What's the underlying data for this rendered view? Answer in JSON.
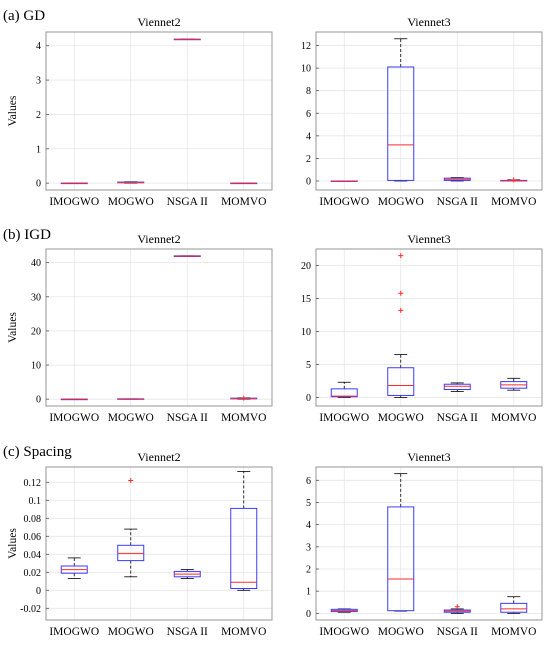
{
  "figure": {
    "section_labels": [
      "(a) GD",
      "(b) IGD",
      "(c) Spacing"
    ]
  },
  "chart_data": [
    {
      "type": "box",
      "section": 0,
      "col": 0,
      "title": "Viennet2",
      "ylabel": "Values",
      "categories": [
        "IMOGWO",
        "MOGWO",
        "NSGA II",
        "MOMVO"
      ],
      "ylim": [
        -0.2,
        4.4
      ],
      "yticks": [
        0,
        1,
        2,
        3,
        4
      ],
      "grid": true,
      "boxes": [
        {
          "q1": 0.0,
          "median": 0.0,
          "q3": 0.0,
          "whisker_low": 0.0,
          "whisker_high": 0.0,
          "outliers": []
        },
        {
          "q1": 0.01,
          "median": 0.02,
          "q3": 0.03,
          "whisker_low": 0.0,
          "whisker_high": 0.04,
          "outliers": []
        },
        {
          "q1": 4.19,
          "median": 4.19,
          "q3": 4.19,
          "whisker_low": 4.19,
          "whisker_high": 4.19,
          "outliers": []
        },
        {
          "q1": 0.0,
          "median": 0.0,
          "q3": 0.0,
          "whisker_low": 0.0,
          "whisker_high": 0.0,
          "outliers": []
        }
      ]
    },
    {
      "type": "box",
      "section": 0,
      "col": 1,
      "title": "Viennet3",
      "ylabel": "",
      "categories": [
        "IMOGWO",
        "MOGWO",
        "NSGA II",
        "MOMVO"
      ],
      "ylim": [
        -0.8,
        13.2
      ],
      "yticks": [
        0,
        2,
        4,
        6,
        8,
        10,
        12
      ],
      "grid": true,
      "boxes": [
        {
          "q1": 0.0,
          "median": 0.0,
          "q3": 0.0,
          "whisker_low": 0.0,
          "whisker_high": 0.0,
          "outliers": []
        },
        {
          "q1": 0.05,
          "median": 3.2,
          "q3": 10.1,
          "whisker_low": 0.0,
          "whisker_high": 12.6,
          "outliers": []
        },
        {
          "q1": 0.05,
          "median": 0.15,
          "q3": 0.25,
          "whisker_low": 0.0,
          "whisker_high": 0.3,
          "outliers": []
        },
        {
          "q1": 0.0,
          "median": 0.02,
          "q3": 0.05,
          "whisker_low": 0.0,
          "whisker_high": 0.1,
          "outliers": [
            0.1
          ]
        }
      ]
    },
    {
      "type": "box",
      "section": 1,
      "col": 0,
      "title": "Viennet2",
      "ylabel": "Values",
      "categories": [
        "IMOGWO",
        "MOGWO",
        "NSGA II",
        "MOMVO"
      ],
      "ylim": [
        -2.0,
        44.0
      ],
      "yticks": [
        0,
        10,
        20,
        30,
        40
      ],
      "grid": true,
      "boxes": [
        {
          "q1": 0.0,
          "median": 0.0,
          "q3": 0.0,
          "whisker_low": 0.0,
          "whisker_high": 0.0,
          "outliers": []
        },
        {
          "q1": 0.0,
          "median": 0.0,
          "q3": 0.1,
          "whisker_low": 0.0,
          "whisker_high": 0.1,
          "outliers": []
        },
        {
          "q1": 41.8,
          "median": 41.9,
          "q3": 42.0,
          "whisker_low": 41.8,
          "whisker_high": 42.0,
          "outliers": []
        },
        {
          "q1": 0.1,
          "median": 0.2,
          "q3": 0.3,
          "whisker_low": 0.0,
          "whisker_high": 0.4,
          "outliers": [
            0.3
          ]
        }
      ]
    },
    {
      "type": "box",
      "section": 1,
      "col": 1,
      "title": "Viennet3",
      "ylabel": "",
      "categories": [
        "IMOGWO",
        "MOGWO",
        "NSGA II",
        "MOMVO"
      ],
      "ylim": [
        -1.3,
        22.5
      ],
      "yticks": [
        0,
        5,
        10,
        15,
        20
      ],
      "grid": true,
      "boxes": [
        {
          "q1": 0.1,
          "median": 0.2,
          "q3": 1.3,
          "whisker_low": 0.0,
          "whisker_high": 2.3,
          "outliers": []
        },
        {
          "q1": 0.3,
          "median": 1.8,
          "q3": 4.5,
          "whisker_low": 0.0,
          "whisker_high": 6.5,
          "outliers": [
            13.2,
            15.8,
            21.5
          ]
        },
        {
          "q1": 1.2,
          "median": 1.7,
          "q3": 2.0,
          "whisker_low": 0.9,
          "whisker_high": 2.2,
          "outliers": []
        },
        {
          "q1": 1.4,
          "median": 1.9,
          "q3": 2.4,
          "whisker_low": 1.1,
          "whisker_high": 2.9,
          "outliers": []
        }
      ]
    },
    {
      "type": "box",
      "section": 2,
      "col": 0,
      "title": "Viennet2",
      "ylabel": "Values",
      "categories": [
        "IMOGWO",
        "MOGWO",
        "NSGA II",
        "MOMVO"
      ],
      "ylim": [
        -0.033,
        0.137
      ],
      "yticks": [
        -0.02,
        0,
        0.02,
        0.04,
        0.06,
        0.08,
        0.1,
        0.12
      ],
      "grid": true,
      "boxes": [
        {
          "q1": 0.019,
          "median": 0.023,
          "q3": 0.027,
          "whisker_low": 0.013,
          "whisker_high": 0.036,
          "outliers": []
        },
        {
          "q1": 0.033,
          "median": 0.041,
          "q3": 0.05,
          "whisker_low": 0.015,
          "whisker_high": 0.068,
          "outliers": [
            0.122
          ]
        },
        {
          "q1": 0.015,
          "median": 0.018,
          "q3": 0.021,
          "whisker_low": 0.013,
          "whisker_high": 0.023,
          "outliers": []
        },
        {
          "q1": 0.002,
          "median": 0.009,
          "q3": 0.091,
          "whisker_low": 0.0,
          "whisker_high": 0.132,
          "outliers": []
        }
      ]
    },
    {
      "type": "box",
      "section": 2,
      "col": 1,
      "title": "Viennet3",
      "ylabel": "",
      "categories": [
        "IMOGWO",
        "MOGWO",
        "NSGA II",
        "MOMVO"
      ],
      "ylim": [
        -0.3,
        6.6
      ],
      "yticks": [
        0,
        1,
        2,
        3,
        4,
        5,
        6
      ],
      "grid": true,
      "boxes": [
        {
          "q1": 0.08,
          "median": 0.12,
          "q3": 0.18,
          "whisker_low": 0.05,
          "whisker_high": 0.2,
          "outliers": []
        },
        {
          "q1": 0.12,
          "median": 1.55,
          "q3": 4.8,
          "whisker_low": 0.1,
          "whisker_high": 6.3,
          "outliers": []
        },
        {
          "q1": 0.05,
          "median": 0.1,
          "q3": 0.15,
          "whisker_low": 0.0,
          "whisker_high": 0.2,
          "outliers": [
            0.3
          ]
        },
        {
          "q1": 0.05,
          "median": 0.2,
          "q3": 0.45,
          "whisker_low": 0.0,
          "whisker_high": 0.75,
          "outliers": []
        }
      ]
    }
  ]
}
